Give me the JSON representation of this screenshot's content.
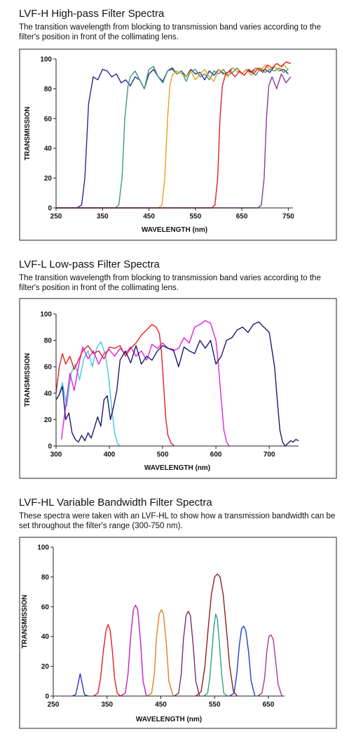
{
  "chart_data": [
    {
      "type": "line",
      "title": "LVF-H High-pass Filter Spectra",
      "subtitle": "The transition wavelength from blocking to transmission band varies according to the filter's position in front of the collimating lens.",
      "xlabel": "WAVELENGTH (nm)",
      "ylabel": "TRANSMISSION",
      "xlim": [
        250,
        760
      ],
      "ylim": [
        0,
        100
      ],
      "xticks": [
        250,
        350,
        450,
        550,
        650,
        750
      ],
      "yticks": [
        0,
        20,
        40,
        60,
        80,
        100
      ],
      "grid": false,
      "series": [
        {
          "color": "#2a2a8c",
          "x": [
            250,
            295,
            305,
            312,
            320,
            330,
            340,
            350,
            360,
            370,
            380,
            390,
            400,
            410,
            420,
            430,
            440,
            450,
            460,
            470,
            480,
            490,
            500,
            510,
            520,
            530,
            540,
            550,
            560,
            570,
            580,
            590,
            600,
            610,
            620,
            630,
            640,
            650,
            660,
            670,
            680,
            690,
            700,
            710,
            720,
            730,
            740,
            750
          ],
          "y": [
            0,
            0,
            2,
            20,
            70,
            88,
            86,
            93,
            92,
            88,
            90,
            84,
            86,
            82,
            88,
            86,
            80,
            90,
            93,
            88,
            85,
            92,
            94,
            90,
            92,
            88,
            93,
            90,
            91,
            86,
            92,
            89,
            93,
            90,
            91,
            94,
            92,
            90,
            93,
            91,
            94,
            92,
            93,
            91,
            95,
            92,
            93,
            90
          ]
        },
        {
          "color": "#3a9a7a",
          "x": [
            250,
            378,
            385,
            392,
            398,
            405,
            410,
            420,
            430,
            440,
            450,
            460,
            470,
            480,
            490,
            500,
            510,
            520,
            530,
            540,
            550,
            560,
            570,
            580,
            590,
            600,
            610,
            620,
            630,
            640,
            650,
            660,
            670,
            680,
            690,
            700,
            710,
            720,
            730,
            740,
            750
          ],
          "y": [
            0,
            0,
            2,
            20,
            60,
            82,
            88,
            92,
            86,
            80,
            93,
            95,
            88,
            84,
            92,
            93,
            90,
            92,
            85,
            92,
            93,
            88,
            90,
            86,
            92,
            90,
            93,
            89,
            91,
            94,
            90,
            93,
            92,
            89,
            94,
            91,
            93,
            92,
            94,
            91,
            93
          ]
        },
        {
          "color": "#e8a020",
          "x": [
            250,
            470,
            478,
            484,
            490,
            495,
            500,
            510,
            520,
            530,
            540,
            550,
            560,
            570,
            580,
            590,
            600,
            610,
            620,
            630,
            640,
            650,
            660,
            670,
            680,
            690,
            700,
            710,
            720,
            730,
            740,
            750
          ],
          "y": [
            0,
            0,
            2,
            20,
            60,
            82,
            89,
            92,
            90,
            88,
            92,
            86,
            90,
            93,
            88,
            85,
            93,
            91,
            88,
            94,
            92,
            90,
            93,
            89,
            94,
            92,
            96,
            93,
            95,
            92,
            96,
            93
          ]
        },
        {
          "color": "#e02020",
          "x": [
            250,
            585,
            592,
            598,
            603,
            608,
            615,
            625,
            635,
            645,
            655,
            665,
            675,
            685,
            695,
            705,
            715,
            725,
            735,
            745,
            755
          ],
          "y": [
            0,
            0,
            2,
            20,
            60,
            82,
            90,
            92,
            88,
            92,
            89,
            93,
            90,
            94,
            91,
            96,
            94,
            97,
            95,
            98,
            97
          ]
        },
        {
          "color": "#8a3a9a",
          "x": [
            250,
            685,
            692,
            698,
            703,
            708,
            715,
            725,
            735,
            745,
            755
          ],
          "y": [
            0,
            0,
            2,
            20,
            60,
            82,
            88,
            80,
            90,
            84,
            88
          ]
        }
      ]
    },
    {
      "type": "line",
      "title": "LVF-L Low-pass Filter Spectra",
      "subtitle": "The transition wavelength from blocking to transmission band varies according to the filter's position in front of the collimating lens.",
      "xlabel": "WAVELENGTH (nm)",
      "ylabel": "TRANSMISSION",
      "xlim": [
        300,
        755
      ],
      "ylim": [
        0,
        100
      ],
      "xticks": [
        300,
        400,
        500,
        600,
        700
      ],
      "yticks": [
        0,
        20,
        40,
        60,
        80,
        100
      ],
      "grid": false,
      "series": [
        {
          "color": "#40c8e0",
          "x": [
            305,
            312,
            320,
            328,
            336,
            344,
            352,
            360,
            368,
            376,
            384,
            392,
            398,
            404,
            410,
            415,
            420
          ],
          "y": [
            38,
            48,
            30,
            55,
            62,
            50,
            66,
            72,
            60,
            74,
            79,
            70,
            55,
            30,
            10,
            2,
            0
          ]
        },
        {
          "color": "#e020e0",
          "x": [
            310,
            318,
            326,
            334,
            342,
            350,
            360,
            370,
            380,
            390,
            400,
            410,
            420,
            430,
            440,
            450,
            460,
            470,
            480,
            490,
            500,
            510,
            520,
            530,
            540,
            550,
            560,
            570,
            580,
            590,
            600,
            605,
            610,
            615,
            620,
            625
          ],
          "y": [
            5,
            30,
            55,
            42,
            60,
            75,
            66,
            72,
            62,
            70,
            73,
            68,
            74,
            70,
            75,
            68,
            72,
            65,
            77,
            74,
            78,
            74,
            72,
            74,
            82,
            78,
            90,
            92,
            95,
            93,
            80,
            60,
            35,
            12,
            3,
            0
          ]
        },
        {
          "color": "#e82020",
          "x": [
            300,
            306,
            312,
            318,
            326,
            334,
            342,
            350,
            360,
            370,
            380,
            390,
            400,
            410,
            420,
            430,
            440,
            450,
            460,
            470,
            480,
            488,
            494,
            498,
            502,
            506,
            510,
            516,
            522
          ],
          "y": [
            40,
            60,
            70,
            62,
            68,
            58,
            65,
            72,
            76,
            70,
            72,
            66,
            75,
            74,
            76,
            68,
            74,
            78,
            84,
            88,
            92,
            90,
            85,
            70,
            45,
            20,
            8,
            2,
            0
          ]
        },
        {
          "color": "#1a1a70",
          "x": [
            300,
            305,
            312,
            318,
            324,
            330,
            336,
            342,
            348,
            354,
            360,
            366,
            372,
            378,
            384,
            390,
            396,
            402,
            408,
            414,
            420,
            430,
            440,
            450,
            460,
            470,
            480,
            490,
            500,
            510,
            520,
            530,
            540,
            550,
            560,
            570,
            580,
            590,
            600,
            610,
            620,
            630,
            640,
            650,
            660,
            670,
            680,
            690,
            700,
            710,
            715,
            720,
            725,
            730,
            735,
            740,
            745,
            750,
            755
          ],
          "y": [
            35,
            38,
            45,
            20,
            25,
            10,
            5,
            3,
            8,
            4,
            10,
            6,
            14,
            22,
            15,
            35,
            38,
            20,
            30,
            42,
            65,
            72,
            63,
            76,
            62,
            68,
            65,
            72,
            76,
            74,
            73,
            60,
            75,
            72,
            70,
            80,
            74,
            80,
            62,
            68,
            80,
            82,
            88,
            90,
            86,
            92,
            94,
            90,
            86,
            60,
            35,
            12,
            3,
            0,
            2,
            4,
            3,
            5,
            4
          ]
        }
      ]
    },
    {
      "type": "line",
      "title": "LVF-HL Variable Bandwidth Filter Spectra",
      "subtitle": "These spectra were taken with an LVF-HL to show how a transmission bandwidth can be set throughout the filter's range (300-750 nm).",
      "xlabel": "WAVELENGTH (nm)",
      "ylabel": "TRANSMISSION",
      "xlim": [
        250,
        680
      ],
      "ylim": [
        0,
        100
      ],
      "xticks": [
        250,
        350,
        450,
        550,
        650
      ],
      "yticks": [
        0,
        20,
        40,
        60,
        80,
        100
      ],
      "grid": false,
      "series": [
        {
          "color": "#3030d0",
          "x": [
            285,
            292,
            296,
            300,
            304,
            308,
            315
          ],
          "y": [
            0,
            1,
            8,
            15,
            8,
            1,
            0
          ]
        },
        {
          "color": "#e02020",
          "x": [
            325,
            333,
            338,
            343,
            348,
            352,
            356,
            360,
            364,
            369,
            375
          ],
          "y": [
            0,
            2,
            12,
            30,
            44,
            48,
            44,
            30,
            12,
            2,
            0
          ]
        },
        {
          "color": "#c020c0",
          "x": [
            375,
            384,
            389,
            394,
            399,
            403,
            407,
            412,
            417,
            423
          ],
          "y": [
            0,
            2,
            15,
            40,
            58,
            61,
            58,
            38,
            10,
            0
          ]
        },
        {
          "color": "#e08020",
          "x": [
            425,
            433,
            438,
            442,
            447,
            451,
            455,
            460,
            465,
            473
          ],
          "y": [
            0,
            2,
            15,
            40,
            55,
            58,
            55,
            36,
            10,
            0
          ]
        },
        {
          "color": "#7a2a7a",
          "x": [
            475,
            483,
            488,
            492,
            497,
            501,
            505,
            510,
            515,
            522
          ],
          "y": [
            0,
            2,
            15,
            38,
            54,
            57,
            54,
            35,
            10,
            0
          ]
        },
        {
          "color": "#8a2020",
          "x": [
            515,
            525,
            532,
            538,
            544,
            550,
            555,
            560,
            566,
            572,
            578,
            585,
            592
          ],
          "y": [
            0,
            3,
            20,
            45,
            68,
            80,
            82,
            80,
            68,
            45,
            20,
            3,
            0
          ]
        },
        {
          "color": "#30a080",
          "x": [
            530,
            537,
            541,
            545,
            549,
            552,
            555,
            559,
            563,
            567,
            574
          ],
          "y": [
            0,
            2,
            12,
            30,
            48,
            55,
            52,
            35,
            15,
            2,
            0
          ]
        },
        {
          "color": "#2040d0",
          "x": [
            578,
            586,
            591,
            596,
            600,
            604,
            608,
            613,
            618,
            625
          ],
          "y": [
            0,
            2,
            14,
            34,
            45,
            47,
            44,
            30,
            10,
            0
          ]
        },
        {
          "color": "#a04090",
          "x": [
            630,
            638,
            643,
            647,
            651,
            655,
            659,
            663,
            668,
            675
          ],
          "y": [
            0,
            2,
            12,
            30,
            40,
            41,
            38,
            25,
            8,
            0
          ]
        }
      ]
    }
  ]
}
